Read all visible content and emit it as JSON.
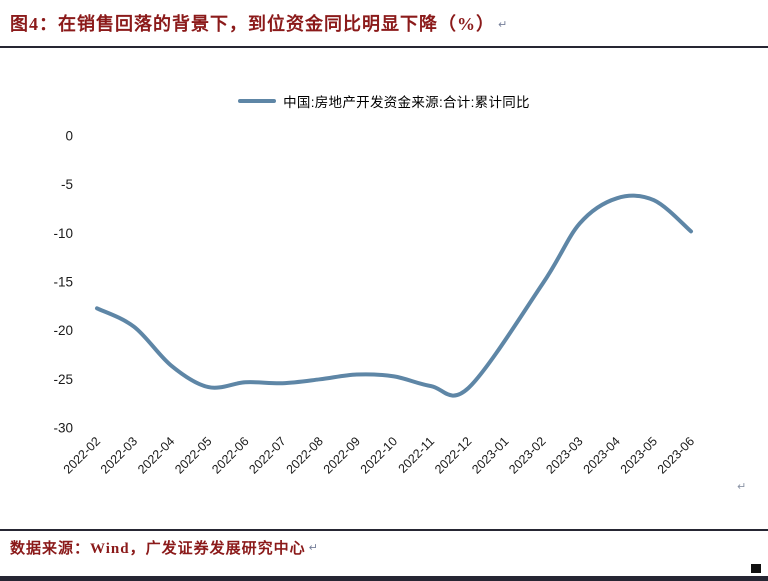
{
  "colors": {
    "accent_red": "#8B1A1A",
    "line_blue": "#5E86A6",
    "rule_dark": "#262633",
    "tick_text": "#1A1A1A"
  },
  "header": {
    "title": "图4：在销售回落的背景下，到位资金同比明显下降（%）",
    "return_mark": "↵"
  },
  "chart_data": {
    "type": "line",
    "title": "在销售回落的背景下，到位资金同比明显下降（%）",
    "categories": [
      "2022-02",
      "2022-03",
      "2022-04",
      "2022-05",
      "2022-06",
      "2022-07",
      "2022-08",
      "2022-09",
      "2022-10",
      "2022-11",
      "2022-12",
      "2023-01",
      "2023-02",
      "2023-03",
      "2023-04",
      "2023-05",
      "2023-06"
    ],
    "series": [
      {
        "name": "中国:房地产开发资金来源:合计:累计同比",
        "values": [
          -17.7,
          -19.6,
          -23.6,
          -25.8,
          -25.3,
          -25.4,
          -25.0,
          -24.5,
          -24.7,
          -25.7,
          -25.9,
          null,
          -15.2,
          -9.0,
          -6.4,
          -6.6,
          -9.8
        ]
      }
    ],
    "ylim": [
      -30,
      0
    ],
    "yticks": [
      0,
      -5,
      -10,
      -15,
      -20,
      -25,
      -30
    ],
    "xlabel": "",
    "ylabel": "",
    "grid": false,
    "legend_position": "top-center",
    "smooth": true
  },
  "footer": {
    "source": "数据来源：Wind，广发证券发展研究中心",
    "return_mark": "↵"
  },
  "page": {
    "chart_return_mark": "↵"
  }
}
